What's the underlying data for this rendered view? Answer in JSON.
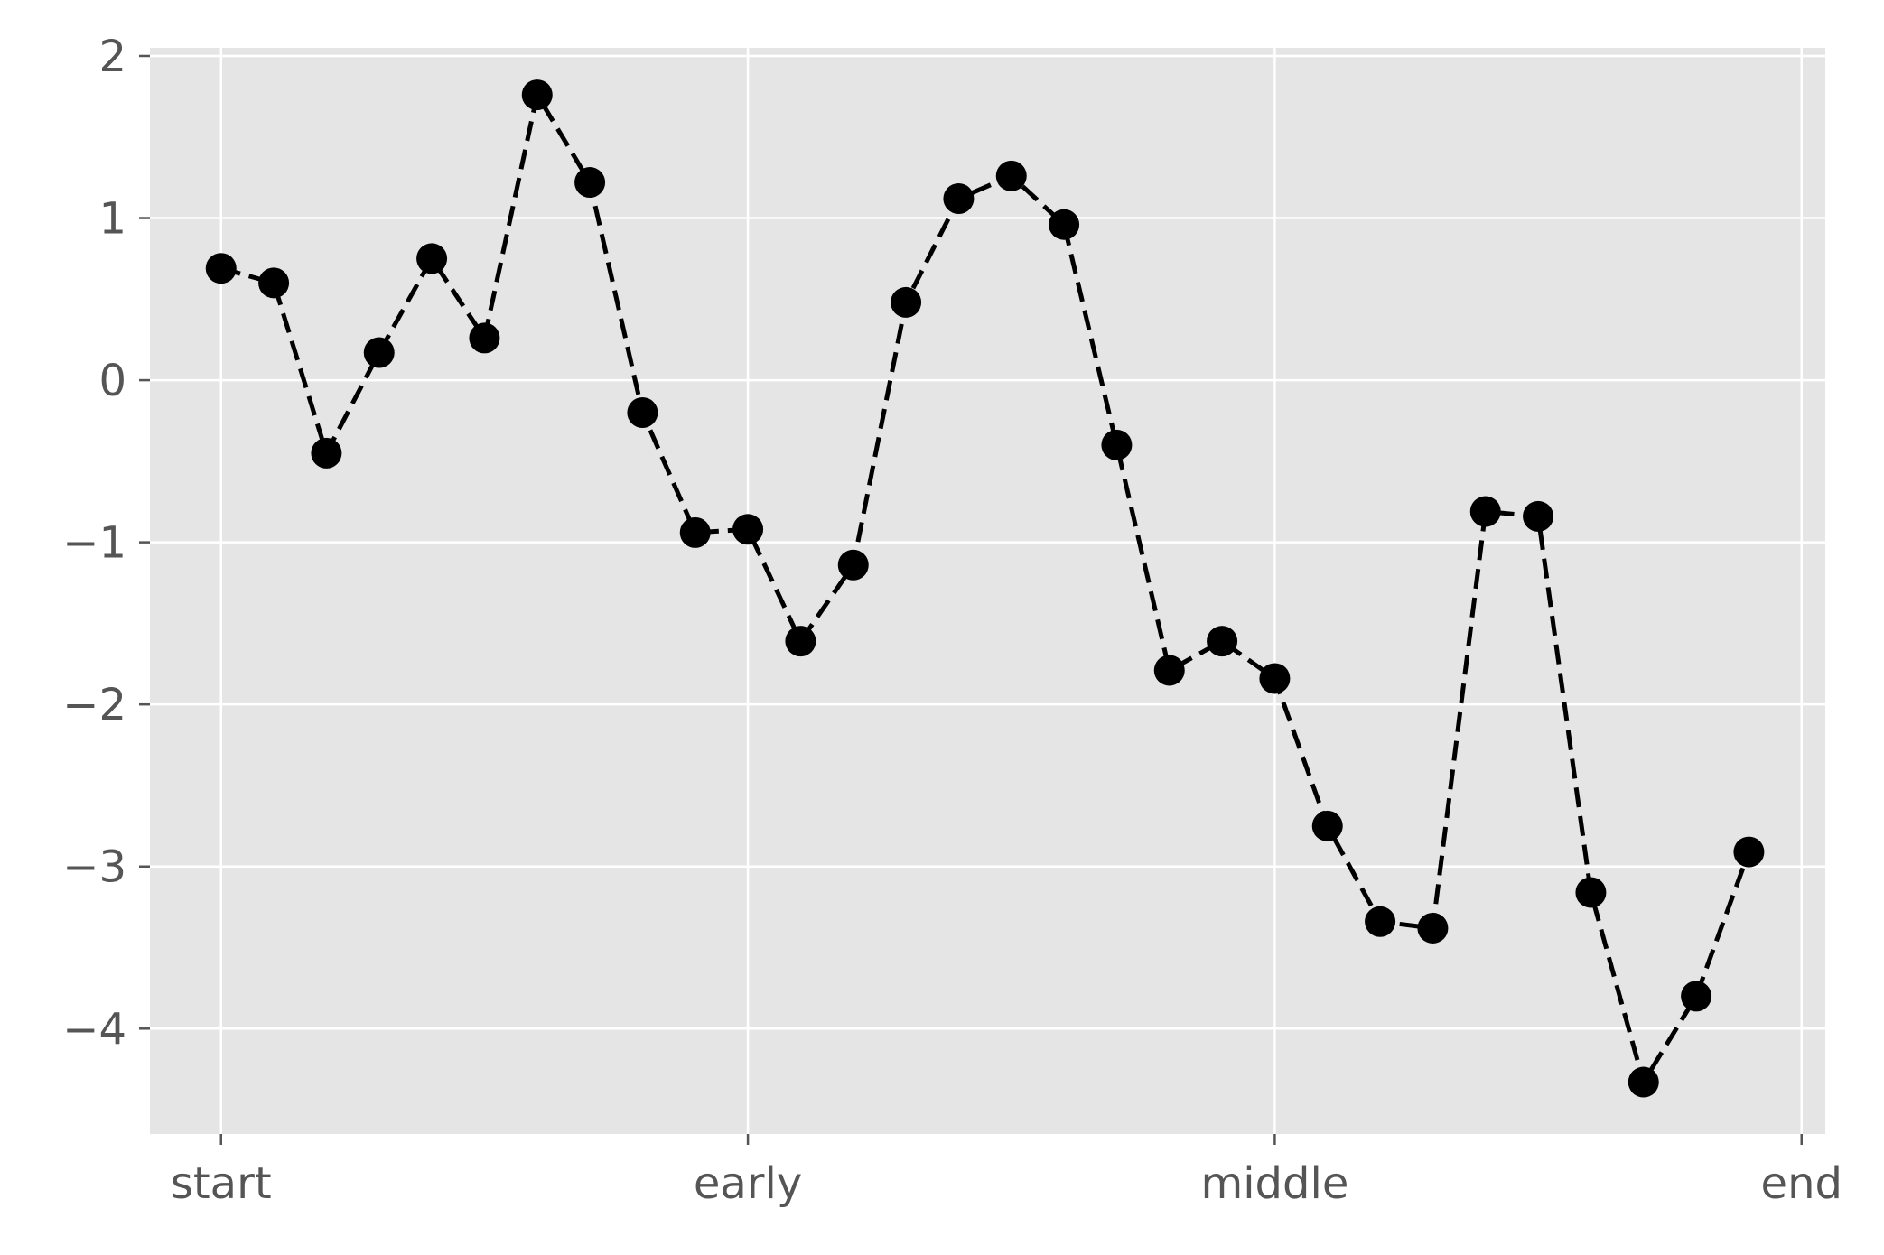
{
  "chart_data": {
    "type": "line",
    "title": "",
    "xlabel": "",
    "ylabel": "",
    "x": [
      0,
      1,
      2,
      3,
      4,
      5,
      6,
      7,
      8,
      9,
      10,
      11,
      12,
      13,
      14,
      15,
      16,
      17,
      18,
      19,
      20,
      21,
      22,
      23,
      24,
      25,
      26,
      27,
      28,
      29
    ],
    "series": [
      {
        "values": [
          0.69,
          0.6,
          -0.45,
          0.17,
          0.75,
          0.26,
          1.76,
          1.22,
          -0.2,
          -0.94,
          -0.92,
          -1.61,
          -1.14,
          0.48,
          1.12,
          1.26,
          0.96,
          -0.4,
          -1.79,
          -1.61,
          -1.84,
          -2.75,
          -3.34,
          -3.38,
          -0.81,
          -0.84,
          -3.16,
          -4.33,
          -3.8,
          -2.91
        ],
        "line_style": "dashed",
        "marker": "circle",
        "color": "#000000"
      }
    ],
    "xticks": [
      {
        "value": 0,
        "label": "start"
      },
      {
        "value": 10,
        "label": "early"
      },
      {
        "value": 20,
        "label": "middle"
      },
      {
        "value": 30,
        "label": "end"
      }
    ],
    "yticks": [
      {
        "value": 2,
        "label": "2"
      },
      {
        "value": 1,
        "label": "1"
      },
      {
        "value": 0,
        "label": "0"
      },
      {
        "value": -1,
        "label": "−1"
      },
      {
        "value": -2,
        "label": "−2"
      },
      {
        "value": -3,
        "label": "−3"
      },
      {
        "value": -4,
        "label": "−4"
      }
    ],
    "xlim": [
      -1.35,
      30.45
    ],
    "ylim": [
      -4.65,
      2.05
    ],
    "grid": true,
    "legend": "none",
    "style": {
      "plot_background": "#e5e5e5",
      "grid_color": "#ffffff",
      "tick_color": "#555555"
    }
  }
}
